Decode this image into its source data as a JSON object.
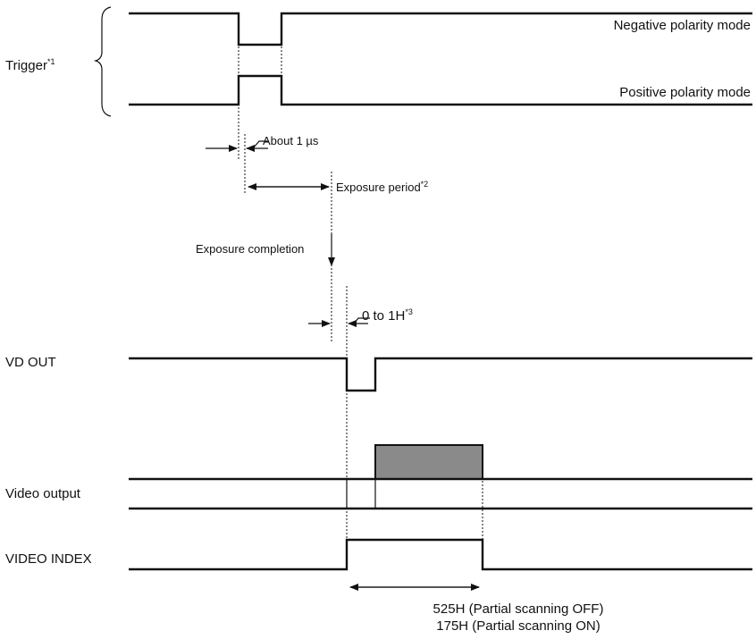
{
  "signals": {
    "trigger": {
      "label": "Trigger",
      "note": "*1"
    },
    "negative_mode": "Negative polarity mode",
    "positive_mode": "Positive polarity mode",
    "vd_out": "VD OUT",
    "video_output": "Video output",
    "video_index": "VIDEO INDEX"
  },
  "annotations": {
    "about_1us": "About 1 µs",
    "exposure_period": {
      "text": "Exposure period",
      "note": "*2"
    },
    "exposure_completion": "Exposure completion",
    "zero_to_1h": {
      "text": "0  to 1H",
      "note": "*3"
    },
    "scan_off": "525H (Partial scanning OFF)",
    "scan_on": "175H (Partial scanning ON)"
  },
  "colors": {
    "line": "#111111",
    "video_fill": "#8a8a8a"
  }
}
